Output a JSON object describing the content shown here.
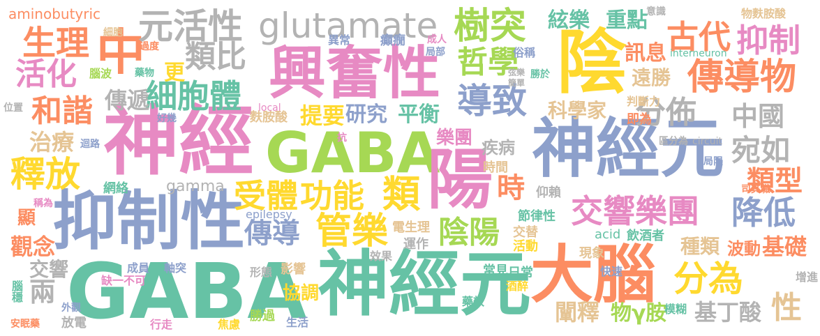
{
  "title": "",
  "words": [
    {
      "id": "gaba-1",
      "text": "GABA",
      "color": "#66c2a5"
    },
    {
      "id": "gaba-2",
      "text": "GABA",
      "color": "#a6d854"
    },
    {
      "id": "shenjingyuan-1",
      "text": "神經元",
      "color": "#66c2a5"
    },
    {
      "id": "shenjingyuan-2",
      "text": "神經元",
      "color": "#8da0cb"
    },
    {
      "id": "shenjing",
      "text": "神經",
      "color": "#e78ac3"
    },
    {
      "id": "yizhixing",
      "text": "抑制性",
      "color": "#8da0cb"
    },
    {
      "id": "xingfenxing",
      "text": "興奮性",
      "color": "#e78ac3"
    },
    {
      "id": "danao",
      "text": "大腦",
      "color": "#fc8d62"
    },
    {
      "id": "yin",
      "text": "陰",
      "color": "#ffd92f"
    },
    {
      "id": "yang",
      "text": "陽",
      "color": "#e78ac3"
    },
    {
      "id": "zhong",
      "text": "中",
      "color": "#fc8d62"
    },
    {
      "id": "glutamate",
      "text": "glutamate",
      "color": "#b3b3b3"
    },
    {
      "id": "yuanhuoxing",
      "text": "元活性",
      "color": "#b3b3b3"
    },
    {
      "id": "shuzhu",
      "text": "樹突",
      "color": "#a6d854"
    },
    {
      "id": "zhexue",
      "text": "哲學",
      "color": "#a6d854"
    },
    {
      "id": "chuandaowu",
      "text": "傳導物",
      "color": "#fc8d62"
    },
    {
      "id": "gudai",
      "text": "古代",
      "color": "#fc8d62"
    },
    {
      "id": "yizhi",
      "text": "抑制",
      "color": "#e78ac3"
    },
    {
      "id": "shengli",
      "text": "生理",
      "color": "#fc8d62"
    },
    {
      "id": "huohua",
      "text": "活化",
      "color": "#e78ac3"
    },
    {
      "id": "leibi",
      "text": "類比",
      "color": "#b3b3b3"
    },
    {
      "id": "xibaoti",
      "text": "細胞體",
      "color": "#66c2a5"
    },
    {
      "id": "daozhi",
      "text": "導致",
      "color": "#8da0cb"
    },
    {
      "id": "fenbu",
      "text": "分佈",
      "color": "#b3b3b3"
    },
    {
      "id": "zhongguo",
      "text": "中國",
      "color": "#b3b3b3"
    },
    {
      "id": "wanru",
      "text": "宛如",
      "color": "#b3b3b3"
    },
    {
      "id": "jiaoxiangyuetuan",
      "text": "交響樂團",
      "color": "#e78ac3"
    },
    {
      "id": "jiangdi",
      "text": "降低",
      "color": "#8da0cb"
    },
    {
      "id": "shouti",
      "text": "受體",
      "color": "#ffd92f"
    },
    {
      "id": "gongneng",
      "text": "功能",
      "color": "#ffd92f"
    },
    {
      "id": "lei",
      "text": "類",
      "color": "#ffd92f"
    },
    {
      "id": "shi",
      "text": "時",
      "color": "#fc8d62"
    },
    {
      "id": "leixing",
      "text": "類型",
      "color": "#fc8d62"
    },
    {
      "id": "shifang",
      "text": "釋放",
      "color": "#ffd92f"
    },
    {
      "id": "hexie",
      "text": "和諧",
      "color": "#fc8d62"
    },
    {
      "id": "zhiliao",
      "text": "治療",
      "color": "#e5c494"
    },
    {
      "id": "chuandi",
      "text": "傳遞",
      "color": "#b3b3b3"
    },
    {
      "id": "tiyao",
      "text": "提要",
      "color": "#ffd92f"
    },
    {
      "id": "yanjiu",
      "text": "研究",
      "color": "#8da0cb"
    },
    {
      "id": "pingheng",
      "text": "平衡",
      "color": "#66c2a5"
    },
    {
      "id": "kexuejia",
      "text": "科學家",
      "color": "#e5c494"
    },
    {
      "id": "zhongdian",
      "text": "重點",
      "color": "#66c2a5"
    },
    {
      "id": "xianyue",
      "text": "絃樂",
      "color": "#66c2a5"
    },
    {
      "id": "xunxi",
      "text": "訊息",
      "color": "#fc8d62"
    },
    {
      "id": "yuansheng",
      "text": "遠勝",
      "color": "#e5c494"
    },
    {
      "id": "gamma",
      "text": "gamma",
      "color": "#b3b3b3"
    },
    {
      "id": "chuandao",
      "text": "傳導",
      "color": "#8da0cb"
    },
    {
      "id": "guanyue",
      "text": "管樂",
      "color": "#ffd92f"
    },
    {
      "id": "yinyang",
      "text": "陰陽",
      "color": "#a6d854"
    },
    {
      "id": "fenwei",
      "text": "分為",
      "color": "#ffd92f"
    },
    {
      "id": "jichu",
      "text": "基礎",
      "color": "#fc8d62"
    },
    {
      "id": "zhonglei",
      "text": "種類",
      "color": "#e5c494"
    },
    {
      "id": "bodong",
      "text": "波動",
      "color": "#fc8d62"
    },
    {
      "id": "xing",
      "text": "性",
      "color": "#e5c494"
    },
    {
      "id": "chanshi",
      "text": "闡釋",
      "color": "#e5c494"
    },
    {
      "id": "wuygaan",
      "text": "物γ胺",
      "color": "#a6d854"
    },
    {
      "id": "jiding",
      "text": "基丁酸",
      "color": "#b3b3b3"
    },
    {
      "id": "guannian",
      "text": "觀念",
      "color": "#fc8d62"
    },
    {
      "id": "jiaoxiang",
      "text": "交響",
      "color": "#b3b3b3"
    },
    {
      "id": "liang",
      "text": "兩",
      "color": "#b3b3b3"
    },
    {
      "id": "xian",
      "text": "顯",
      "color": "#fc8d62"
    },
    {
      "id": "aminobutyric",
      "text": "aminobutyric",
      "color": "#fc8d62"
    },
    {
      "id": "geng",
      "text": "更",
      "color": "#ffd92f"
    },
    {
      "id": "yuetuan",
      "text": "樂團",
      "color": "#e78ac3"
    },
    {
      "id": "jibing",
      "text": "疾病",
      "color": "#b3b3b3"
    },
    {
      "id": "epilepsy",
      "text": "epilepsy",
      "color": "#8da0cb"
    },
    {
      "id": "dianshengli",
      "text": "電生理",
      "color": "#e5c494"
    },
    {
      "id": "jielvxing",
      "text": "節律性",
      "color": "#66c2a5"
    },
    {
      "id": "xiediao",
      "text": "協調",
      "color": "#ffd92f"
    },
    {
      "id": "yingxiang",
      "text": "影響",
      "color": "#e5c494"
    },
    {
      "id": "acid",
      "text": "acid",
      "color": "#66c2a5"
    },
    {
      "id": "yinjiuzhe",
      "text": "飲酒者",
      "color": "#66c2a5"
    },
    {
      "id": "fuanpisuan",
      "text": "麩胺酸",
      "color": "#e5c494"
    },
    {
      "id": "panduanli",
      "text": "判斷力",
      "color": "#e5c494"
    },
    {
      "id": "jiwei",
      "text": "即為",
      "color": "#fc8d62"
    },
    {
      "id": "shijian",
      "text": "時間",
      "color": "#e5c494"
    },
    {
      "id": "yilai",
      "text": "仰賴",
      "color": "#b3b3b3"
    },
    {
      "id": "zhixiang",
      "text": "智項",
      "color": "#e5c494"
    },
    {
      "id": "xianxiang",
      "text": "現象",
      "color": "#e5c494"
    },
    {
      "id": "huodong",
      "text": "活動",
      "color": "#ffd92f"
    },
    {
      "id": "jiaoti",
      "text": "交替",
      "color": "#e5c494"
    },
    {
      "id": "yunzuo",
      "text": "運作",
      "color": "#b3b3b3"
    },
    {
      "id": "xiaoguo",
      "text": "效果",
      "color": "#b3b3b3"
    },
    {
      "id": "changjian",
      "text": "常見",
      "color": "#66c2a5"
    },
    {
      "id": "richang",
      "text": "日常",
      "color": "#66c2a5"
    },
    {
      "id": "kuaisu",
      "text": "快速",
      "color": "#8da0cb"
    },
    {
      "id": "mohu",
      "text": "模糊",
      "color": "#66c2a5"
    },
    {
      "id": "zengjin",
      "text": "增進",
      "color": "#b3b3b3"
    },
    {
      "id": "zuiyan",
      "text": "酒醉",
      "color": "#ffd92f"
    },
    {
      "id": "yaoxiao",
      "text": "藥效",
      "color": "#66c2a5"
    },
    {
      "id": "chengyuan",
      "text": "成員",
      "color": "#8da0cb"
    },
    {
      "id": "zhoutu",
      "text": "軸突",
      "color": "#8da0cb"
    },
    {
      "id": "xingtai",
      "text": "形態",
      "color": "#b3b3b3"
    },
    {
      "id": "quebuke",
      "text": "缺一不可",
      "color": "#e78ac3"
    },
    {
      "id": "waiguan",
      "text": "外觀",
      "color": "#8da0cb"
    },
    {
      "id": "fangdian",
      "text": "放電",
      "color": "#b3b3b3"
    },
    {
      "id": "anmianyao",
      "text": "安眠藥",
      "color": "#fc8d62"
    },
    {
      "id": "xingzou",
      "text": "行走",
      "color": "#e78ac3"
    },
    {
      "id": "jiaolv",
      "text": "焦慮",
      "color": "#ffd92f"
    },
    {
      "id": "shengguo",
      "text": "勝過",
      "color": "#a6d854"
    },
    {
      "id": "shenghuo",
      "text": "生活",
      "color": "#8da0cb"
    },
    {
      "id": "naowen",
      "text": "腦穩",
      "color": "#66c2a5"
    },
    {
      "id": "weizhi",
      "text": "位置",
      "color": "#b3b3b3"
    },
    {
      "id": "huilu",
      "text": "迴路",
      "color": "#8da0cb"
    },
    {
      "id": "wangluo",
      "text": "網絡",
      "color": "#66c2a5"
    },
    {
      "id": "chengwei",
      "text": "稱為",
      "color": "#e78ac3"
    },
    {
      "id": "haoji",
      "text": "好幾",
      "color": "#8da0cb"
    },
    {
      "id": "local",
      "text": "local",
      "color": "#e78ac3"
    },
    {
      "id": "kang",
      "text": "抗",
      "color": "#e78ac3"
    },
    {
      "id": "xibao",
      "text": "細胞",
      "color": "#e5c494"
    },
    {
      "id": "guodu",
      "text": "過度",
      "color": "#fc8d62"
    },
    {
      "id": "naobo",
      "text": "腦波",
      "color": "#a6d854"
    },
    {
      "id": "yaowu",
      "text": "藥物",
      "color": "#66c2a5"
    },
    {
      "id": "yichang",
      "text": "異常",
      "color": "#8da0cb"
    },
    {
      "id": "dianxian",
      "text": "癲癇",
      "color": "#8da0cb"
    },
    {
      "id": "chengren",
      "text": "成人",
      "color": "#e78ac3"
    },
    {
      "id": "jubu",
      "text": "局部",
      "color": "#8da0cb"
    },
    {
      "id": "suchen",
      "text": "俗稱",
      "color": "#8da0cb"
    },
    {
      "id": "xianyue2",
      "text": "弦樂",
      "color": "#b3b3b3"
    },
    {
      "id": "jiandan",
      "text": "簡單",
      "color": "#b3b3b3"
    },
    {
      "id": "shengyu",
      "text": "勝於",
      "color": "#66c2a5"
    },
    {
      "id": "yishi",
      "text": "意識",
      "color": "#b3b3b3"
    },
    {
      "id": "interneuron",
      "text": "interneuron",
      "color": "#66c2a5"
    },
    {
      "id": "wufuanansuan",
      "text": "物麩胺酸",
      "color": "#e5c494"
    },
    {
      "id": "qufenwei",
      "text": "區分為",
      "color": "#b3b3b3"
    },
    {
      "id": "circuit",
      "text": "circuit",
      "color": "#b3b3b3"
    },
    {
      "id": "juxian",
      "text": "局限",
      "color": "#8da0cb"
    },
    {
      "id": "siqizhi",
      "text": "司其職",
      "color": "#fc8d62"
    }
  ]
}
